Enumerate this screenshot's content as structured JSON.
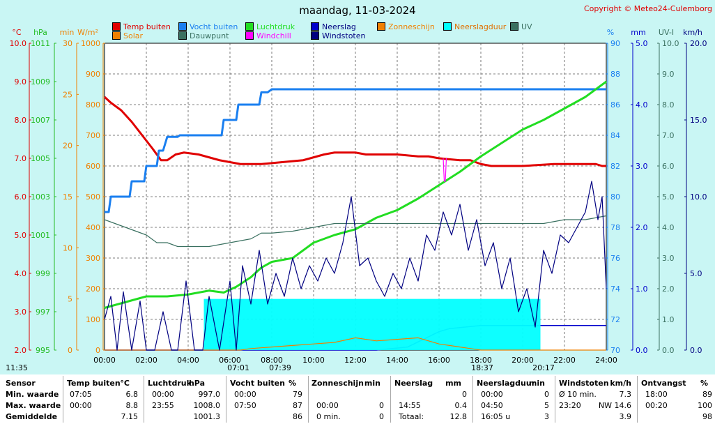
{
  "title": "maandag, 11-03-2024",
  "copyright": "Copyright © Meteo24-Culemborg",
  "legend": [
    {
      "label": "Temp buiten",
      "color": "#e00000"
    },
    {
      "label": "Vocht buiten",
      "color": "#1a7ff0"
    },
    {
      "label": "Luchtdruk",
      "color": "#22dd22"
    },
    {
      "label": "Neerslag",
      "color": "#0000cc"
    },
    {
      "label": "Zonneschijn",
      "color": "#f08000"
    },
    {
      "label": "Neerslagduur",
      "color": "#00ffff"
    },
    {
      "label": "UV",
      "color": "#3a7060"
    },
    {
      "label": "Solar",
      "color": "#f08000"
    },
    {
      "label": "Dauwpunt",
      "color": "#3a7060"
    },
    {
      "label": "Windchill",
      "color": "#ff00ff"
    },
    {
      "label": "Windstoten",
      "color": "#000080"
    }
  ],
  "axis_units": {
    "temp": "°C",
    "hpa": "hPa",
    "min": "min",
    "solar": "W/m²",
    "pct": "%",
    "mm": "mm",
    "uv": "UV-I",
    "kmh": "km/h"
  },
  "axes": {
    "temp": {
      "ticks": [
        "10.0",
        "9.0",
        "8.0",
        "7.0",
        "6.0",
        "5.0",
        "4.0",
        "3.0",
        "2.0"
      ],
      "color": "#e00000"
    },
    "hpa": {
      "ticks": [
        "1011",
        "1009",
        "1007",
        "1005",
        "1003",
        "1001",
        "999",
        "997",
        "995"
      ],
      "color": "#22bb22"
    },
    "min": {
      "ticks": [
        "30",
        "25",
        "20",
        "15",
        "10",
        "5",
        "0"
      ],
      "color": "#f08000"
    },
    "solar": {
      "ticks": [
        "1000",
        "900",
        "800",
        "700",
        "600",
        "500",
        "400",
        "300",
        "200",
        "100",
        "0"
      ],
      "color": "#f08000"
    },
    "pct": {
      "ticks": [
        "90",
        "88",
        "86",
        "84",
        "82",
        "80",
        "78",
        "76",
        "74",
        "72",
        "70"
      ],
      "color": "#1a7ff0"
    },
    "mm": {
      "ticks": [
        "5.0",
        "4.0",
        "3.0",
        "2.0",
        "1.0",
        "0.0"
      ],
      "color": "#0000cc"
    },
    "uv": {
      "ticks": [
        "10.0",
        "9.0",
        "8.0",
        "7.0",
        "6.0",
        "5.0",
        "4.0",
        "3.0",
        "2.0",
        "1.0",
        "0.0"
      ],
      "color": "#3a7060"
    },
    "kmh": {
      "ticks": [
        "20.0",
        "15.0",
        "10.0",
        "5.0",
        "0.0"
      ],
      "color": "#000080"
    }
  },
  "x_ticks": [
    "00:00",
    "02:00",
    "04:00",
    "06:00",
    "08:00",
    "10:00",
    "12:00",
    "14:00",
    "16:00",
    "18:00",
    "20:00",
    "22:00",
    "24:00"
  ],
  "time_markers": {
    "now": "11:35",
    "sunrise": "07:01",
    "civil_dawn": "07:39",
    "sunset": "18:37",
    "civil_dusk": "20:17"
  },
  "chart_data": {
    "type": "line",
    "xlabel": "",
    "x_range": [
      "00:00",
      "24:00"
    ],
    "series": [
      {
        "name": "Temp buiten",
        "unit": "°C",
        "axis": "temp",
        "ylim": [
          2,
          10
        ],
        "x": [
          0,
          0.3,
          0.8,
          1.3,
          1.8,
          2.3,
          2.7,
          3.0,
          3.4,
          3.8,
          4.5,
          5.5,
          6.5,
          7.0,
          7.5,
          8.5,
          9.5,
          10.5,
          11.0,
          11.7,
          12.0,
          12.5,
          13.0,
          14.0,
          15.0,
          15.5,
          16.0,
          17.0,
          17.5,
          18.0,
          18.5,
          20.0,
          21.5,
          22.5,
          23.5,
          23.8,
          24.0
        ],
        "y": [
          8.6,
          8.45,
          8.25,
          7.95,
          7.6,
          7.25,
          6.95,
          6.95,
          7.1,
          7.15,
          7.1,
          6.95,
          6.85,
          6.85,
          6.85,
          6.9,
          6.95,
          7.1,
          7.15,
          7.15,
          7.15,
          7.1,
          7.1,
          7.1,
          7.05,
          7.05,
          7.0,
          6.95,
          6.95,
          6.85,
          6.8,
          6.8,
          6.85,
          6.85,
          6.85,
          6.8,
          6.8
        ]
      },
      {
        "name": "Vocht buiten",
        "unit": "%",
        "axis": "pct",
        "ylim": [
          70,
          90
        ],
        "x": [
          0,
          0.2,
          0.3,
          1.2,
          1.3,
          1.9,
          2.0,
          2.5,
          2.6,
          2.8,
          3.0,
          3.5,
          3.6,
          4.5,
          5.0,
          5.6,
          5.7,
          6.3,
          6.4,
          7.4,
          7.5,
          7.8,
          8.0,
          24
        ],
        "y": [
          79,
          79,
          80,
          80,
          81,
          81,
          82,
          82,
          83,
          83,
          83.9,
          83.9,
          84,
          84,
          84,
          84,
          85,
          85,
          86,
          86,
          86.8,
          86.8,
          87,
          87
        ]
      },
      {
        "name": "Luchtdruk",
        "unit": "hPa",
        "axis": "hpa",
        "ylim": [
          995,
          1011
        ],
        "x": [
          0,
          1,
          2,
          3,
          4,
          5,
          5.7,
          6.3,
          7,
          7.5,
          8,
          9,
          10,
          11,
          12,
          13,
          14,
          15,
          16,
          17,
          18,
          19,
          20,
          21,
          22,
          23,
          24
        ],
        "y": [
          997.2,
          997.5,
          997.8,
          997.8,
          997.9,
          998.1,
          998.0,
          998.3,
          998.8,
          999.3,
          999.6,
          999.8,
          1000.6,
          1001.0,
          1001.3,
          1001.9,
          1002.3,
          1002.9,
          1003.6,
          1004.3,
          1005.1,
          1005.8,
          1006.5,
          1007.0,
          1007.6,
          1008.2,
          1009.0
        ]
      },
      {
        "name": "Dauwpunt",
        "unit": "°C",
        "axis": "temp",
        "ylim": [
          2,
          10
        ],
        "x": [
          0,
          0.5,
          1,
          1.5,
          2,
          2.5,
          3,
          3.5,
          4,
          5,
          6,
          7,
          7.5,
          8,
          9,
          10,
          11,
          12,
          13,
          14,
          15,
          16,
          17,
          18,
          19,
          20,
          21,
          22,
          23,
          24
        ],
        "y": [
          5.4,
          5.3,
          5.2,
          5.1,
          5.0,
          4.8,
          4.8,
          4.7,
          4.7,
          4.7,
          4.8,
          4.9,
          5.05,
          5.05,
          5.1,
          5.2,
          5.3,
          5.3,
          5.3,
          5.3,
          5.3,
          5.3,
          5.3,
          5.3,
          5.3,
          5.3,
          5.3,
          5.4,
          5.4,
          5.5
        ]
      },
      {
        "name": "Windchill",
        "unit": "°C",
        "axis": "temp",
        "ylim": [
          2,
          10
        ],
        "x": [
          16.2,
          16.25,
          16.3,
          16.35
        ],
        "y": [
          7.0,
          6.4,
          6.4,
          7.0
        ]
      },
      {
        "name": "Neerslag",
        "unit": "mm",
        "axis": "mm",
        "ylim": [
          0,
          5
        ],
        "x": [
          0,
          5,
          5.9,
          6.6,
          7.5,
          8.5,
          9.5,
          11,
          12,
          13,
          14.5,
          16,
          16.5,
          18,
          24
        ],
        "y": [
          0,
          0,
          0,
          0,
          0,
          0,
          0,
          0,
          0,
          0,
          0.05,
          0.3,
          0.35,
          0.4,
          0.4
        ]
      },
      {
        "name": "Neerslagduur",
        "unit": "min",
        "axis": "min",
        "ylim": [
          0,
          30
        ],
        "x": [
          4.75,
          4.75,
          20.85,
          20.85
        ],
        "y": [
          0,
          5,
          5,
          0
        ]
      },
      {
        "name": "Solar",
        "unit": "W/m²",
        "axis": "solar",
        "ylim": [
          0,
          1000
        ],
        "x": [
          0,
          6.5,
          7.0,
          8,
          9,
          10,
          11,
          12,
          13,
          14,
          15,
          16,
          16.5,
          17,
          17.5,
          18,
          24
        ],
        "y": [
          0,
          0,
          5,
          10,
          15,
          20,
          25,
          40,
          30,
          35,
          40,
          20,
          15,
          10,
          5,
          0,
          0
        ]
      },
      {
        "name": "Windstoten",
        "unit": "km/h",
        "axis": "kmh",
        "ylim": [
          0,
          20
        ],
        "x": [
          0,
          0.3,
          0.6,
          0.9,
          1.3,
          1.7,
          2.0,
          2.4,
          2.8,
          3.2,
          3.5,
          3.9,
          4.3,
          4.7,
          5.0,
          5.5,
          6.0,
          6.3,
          6.6,
          7.0,
          7.4,
          7.8,
          8.2,
          8.6,
          9.0,
          9.4,
          9.8,
          10.2,
          10.6,
          11.0,
          11.4,
          11.8,
          12.2,
          12.6,
          13.0,
          13.4,
          13.8,
          14.2,
          14.6,
          15.0,
          15.4,
          15.8,
          16.2,
          16.6,
          17.0,
          17.4,
          17.8,
          18.2,
          18.6,
          19.0,
          19.4,
          19.8,
          20.2,
          20.6,
          21.0,
          21.4,
          21.8,
          22.2,
          22.6,
          23.0,
          23.3,
          23.6,
          23.8,
          24.0
        ],
        "y": [
          2.0,
          3.5,
          0,
          3.8,
          0,
          3.2,
          0,
          0,
          2.5,
          0,
          0,
          4.5,
          0,
          0,
          3.5,
          0,
          4.5,
          0,
          5.5,
          3.0,
          6.5,
          3.0,
          5.0,
          3.5,
          6.0,
          4.0,
          5.5,
          4.5,
          6.0,
          5.0,
          7.0,
          10.0,
          5.5,
          6.0,
          4.5,
          3.5,
          5.0,
          4.0,
          6.0,
          4.5,
          7.5,
          6.5,
          9.0,
          7.5,
          9.5,
          6.5,
          8.5,
          5.5,
          7.0,
          4.0,
          6.0,
          2.5,
          4.0,
          1.5,
          6.5,
          5.0,
          7.5,
          7.0,
          8.0,
          9.0,
          11.0,
          8.5,
          10.0,
          4.0
        ]
      }
    ]
  },
  "footer": {
    "now_label": "11:35",
    "headers": [
      "Sensor",
      "Temp buiten",
      "°C",
      "Luchtdruk",
      "hPa",
      "Vocht buiten",
      "%",
      "Zonneschijn",
      "min",
      "Neerslag",
      "mm",
      "Neerslagduur",
      "min",
      "Windstoten",
      "km/h",
      "Ontvangst",
      "%"
    ],
    "rows": [
      {
        "label": "Min. waarde",
        "c1t": "07:05",
        "c1v": "6.8",
        "c2t": "00:00",
        "c2v": "997.0",
        "c3t": "00:00",
        "c3v": "79",
        "c4t": "",
        "c4v": "",
        "c5t": "",
        "c5v": "0",
        "c6t": "00:00",
        "c6v": "0",
        "c7t": "Ø 10 min.",
        "c7v": "7.3",
        "c8t": "18:00",
        "c8v": "89"
      },
      {
        "label": "Max. waarde",
        "c1t": "00:00",
        "c1v": "8.8",
        "c2t": "23:55",
        "c2v": "1008.0",
        "c3t": "07:50",
        "c3v": "87",
        "c4t": "00:00",
        "c4v": "0",
        "c5t": "14:55",
        "c5v": "0.4",
        "c6t": "04:50",
        "c6v": "5",
        "c7t": "23:20",
        "c7v": "NW 14.6",
        "c8t": "00:20",
        "c8v": "100"
      },
      {
        "label": "Gemiddelde",
        "c1t": "",
        "c1v": "7.15",
        "c2t": "",
        "c2v": "1001.3",
        "c3t": "",
        "c3v": "86",
        "c4t": "0 min.",
        "c4v": "0",
        "c5t": "Totaal:",
        "c5v": "12.8",
        "c6t": "16:05 u",
        "c6v": "3",
        "c7t": "",
        "c7v": "3.9",
        "c8t": "",
        "c8v": "98"
      }
    ]
  }
}
